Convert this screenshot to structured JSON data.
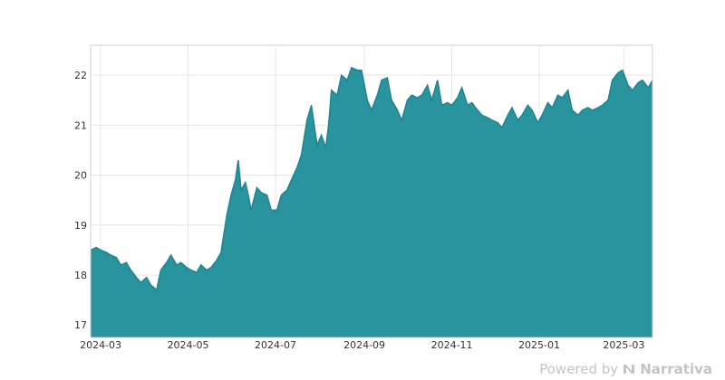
{
  "chart_data": {
    "type": "area",
    "title": "",
    "xlabel": "",
    "ylabel": "",
    "ylim": [
      16.75,
      22.6
    ],
    "xlim": [
      "2024-02-23",
      "2025-03-21"
    ],
    "yticks": [
      17,
      18,
      19,
      20,
      21,
      22
    ],
    "xticks": [
      "2024-03",
      "2024-05",
      "2024-07",
      "2024-09",
      "2024-11",
      "2025-01",
      "2025-03"
    ],
    "grid": true,
    "legend": "none",
    "fill_color": "#2a949e",
    "line_color": "#1f8590",
    "series": [
      {
        "x": [
          "2024-02-23",
          "2024-02-27",
          "2024-03-01",
          "2024-03-05",
          "2024-03-08",
          "2024-03-12",
          "2024-03-15",
          "2024-03-19",
          "2024-03-22",
          "2024-03-26",
          "2024-03-29",
          "2024-04-02",
          "2024-04-05",
          "2024-04-09",
          "2024-04-12",
          "2024-04-16",
          "2024-04-19",
          "2024-04-23",
          "2024-04-26",
          "2024-04-30",
          "2024-05-03",
          "2024-05-07",
          "2024-05-10",
          "2024-05-14",
          "2024-05-17",
          "2024-05-21",
          "2024-05-24",
          "2024-05-28",
          "2024-05-31",
          "2024-06-03",
          "2024-06-05",
          "2024-06-07",
          "2024-06-10",
          "2024-06-12",
          "2024-06-14",
          "2024-06-18",
          "2024-06-21",
          "2024-06-25",
          "2024-06-28",
          "2024-07-02",
          "2024-07-05",
          "2024-07-09",
          "2024-07-12",
          "2024-07-16",
          "2024-07-19",
          "2024-07-23",
          "2024-07-26",
          "2024-07-30",
          "2024-08-02",
          "2024-08-05",
          "2024-08-07",
          "2024-08-09",
          "2024-08-13",
          "2024-08-16",
          "2024-08-20",
          "2024-08-23",
          "2024-08-27",
          "2024-08-30",
          "2024-09-03",
          "2024-09-06",
          "2024-09-10",
          "2024-09-13",
          "2024-09-17",
          "2024-09-20",
          "2024-09-24",
          "2024-09-27",
          "2024-10-01",
          "2024-10-04",
          "2024-10-08",
          "2024-10-11",
          "2024-10-15",
          "2024-10-18",
          "2024-10-22",
          "2024-10-25",
          "2024-10-29",
          "2024-11-01",
          "2024-11-05",
          "2024-11-08",
          "2024-11-12",
          "2024-11-15",
          "2024-11-19",
          "2024-11-22",
          "2024-11-26",
          "2024-11-29",
          "2024-12-03",
          "2024-12-06",
          "2024-12-10",
          "2024-12-13",
          "2024-12-17",
          "2024-12-20",
          "2024-12-24",
          "2024-12-27",
          "2024-12-31",
          "2025-01-03",
          "2025-01-07",
          "2025-01-10",
          "2025-01-14",
          "2025-01-17",
          "2025-01-21",
          "2025-01-24",
          "2025-01-28",
          "2025-01-31",
          "2025-02-04",
          "2025-02-07",
          "2025-02-11",
          "2025-02-14",
          "2025-02-18",
          "2025-02-21",
          "2025-02-25",
          "2025-02-28",
          "2025-03-04",
          "2025-03-07",
          "2025-03-11",
          "2025-03-14",
          "2025-03-18",
          "2025-03-21"
        ],
        "y": [
          18.5,
          18.55,
          18.5,
          18.45,
          18.4,
          18.35,
          18.2,
          18.25,
          18.1,
          17.95,
          17.85,
          17.95,
          17.8,
          17.7,
          18.1,
          18.25,
          18.4,
          18.2,
          18.25,
          18.15,
          18.1,
          18.05,
          18.2,
          18.1,
          18.15,
          18.3,
          18.45,
          19.2,
          19.6,
          19.9,
          20.3,
          19.7,
          19.85,
          19.6,
          19.3,
          19.75,
          19.65,
          19.6,
          19.3,
          19.3,
          19.6,
          19.7,
          19.9,
          20.15,
          20.4,
          21.1,
          21.4,
          20.6,
          20.8,
          20.55,
          21.0,
          21.7,
          21.6,
          22.0,
          21.9,
          22.15,
          22.1,
          22.1,
          21.5,
          21.3,
          21.6,
          21.9,
          21.95,
          21.5,
          21.3,
          21.1,
          21.5,
          21.6,
          21.55,
          21.6,
          21.8,
          21.5,
          21.9,
          21.4,
          21.45,
          21.4,
          21.55,
          21.75,
          21.4,
          21.45,
          21.3,
          21.2,
          21.15,
          21.1,
          21.05,
          20.95,
          21.2,
          21.35,
          21.1,
          21.2,
          21.4,
          21.3,
          21.05,
          21.2,
          21.45,
          21.35,
          21.6,
          21.55,
          21.7,
          21.3,
          21.2,
          21.3,
          21.35,
          21.3,
          21.35,
          21.4,
          21.5,
          21.9,
          22.05,
          22.1,
          21.8,
          21.7,
          21.85,
          21.9,
          21.75,
          21.9
        ]
      }
    ]
  },
  "footer": {
    "powered_by": "Powered by",
    "brand": "Narrativa"
  }
}
